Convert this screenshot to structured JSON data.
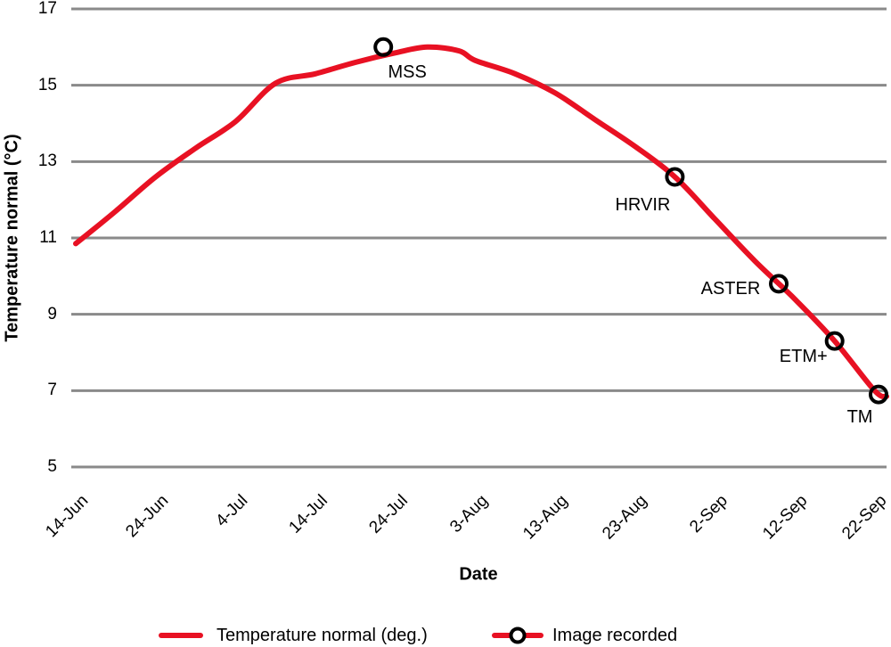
{
  "chart_data": {
    "type": "line",
    "title": "",
    "xlabel": "Date",
    "ylabel": "Temperature normal (°C)",
    "ylim": [
      5,
      17
    ],
    "yticks": [
      17,
      15,
      13,
      11,
      9,
      7,
      5
    ],
    "grid": "horizontal",
    "legend_position": "bottom",
    "x_axis_unit": "days since 14-Jun",
    "x_range_days": [
      0,
      101.5
    ],
    "xticks": [
      {
        "day": 0,
        "label": "14-Jun"
      },
      {
        "day": 10,
        "label": "24-Jun"
      },
      {
        "day": 20,
        "label": "4-Jul"
      },
      {
        "day": 30,
        "label": "14-Jul"
      },
      {
        "day": 40,
        "label": "24-Jul"
      },
      {
        "day": 50,
        "label": "3-Aug"
      },
      {
        "day": 60,
        "label": "13-Aug"
      },
      {
        "day": 70,
        "label": "23-Aug"
      },
      {
        "day": 80,
        "label": "2-Sep"
      },
      {
        "day": 90,
        "label": "12-Sep"
      },
      {
        "day": 100,
        "label": "22-Sep"
      }
    ],
    "series": [
      {
        "name": "Temperature normal (deg.)",
        "color": "#e81123",
        "points": [
          {
            "day": 0,
            "date": "14-Jun",
            "value": 10.85
          },
          {
            "day": 5,
            "date": "19-Jun",
            "value": 11.7
          },
          {
            "day": 10,
            "date": "24-Jun",
            "value": 12.6
          },
          {
            "day": 15,
            "date": "29-Jun",
            "value": 13.35
          },
          {
            "day": 20,
            "date": "4-Jul",
            "value": 14.05
          },
          {
            "day": 25,
            "date": "9-Jul",
            "value": 15.05
          },
          {
            "day": 30,
            "date": "14-Jul",
            "value": 15.3
          },
          {
            "day": 35,
            "date": "19-Jul",
            "value": 15.6
          },
          {
            "day": 40,
            "date": "24-Jul",
            "value": 15.85
          },
          {
            "day": 44,
            "date": "28-Jul",
            "value": 16.0
          },
          {
            "day": 48,
            "date": "1-Aug",
            "value": 15.9
          },
          {
            "day": 50,
            "date": "3-Aug",
            "value": 15.65
          },
          {
            "day": 55,
            "date": "8-Aug",
            "value": 15.3
          },
          {
            "day": 60,
            "date": "13-Aug",
            "value": 14.8
          },
          {
            "day": 65,
            "date": "18-Aug",
            "value": 14.1
          },
          {
            "day": 70,
            "date": "23-Aug",
            "value": 13.4
          },
          {
            "day": 75,
            "date": "28-Aug",
            "value": 12.6
          },
          {
            "day": 80,
            "date": "2-Sep",
            "value": 11.5
          },
          {
            "day": 85,
            "date": "7-Sep",
            "value": 10.4
          },
          {
            "day": 90,
            "date": "12-Sep",
            "value": 9.4
          },
          {
            "day": 95,
            "date": "17-Sep",
            "value": 8.3
          },
          {
            "day": 100,
            "date": "22-Sep",
            "value": 7.0
          },
          {
            "day": 101.5,
            "date": "23-Sep",
            "value": 6.85
          }
        ]
      }
    ],
    "markers": {
      "name": "Image recorded",
      "points": [
        {
          "label": "MSS",
          "day": 38.5,
          "date": "22-Jul",
          "value": 16.0
        },
        {
          "label": "HRVIR",
          "day": 75,
          "date": "28-Aug",
          "value": 12.6
        },
        {
          "label": "ASTER",
          "day": 88,
          "date": "10-Sep",
          "value": 9.8
        },
        {
          "label": "ETM+",
          "day": 95,
          "date": "17-Sep",
          "value": 8.3
        },
        {
          "label": "TM",
          "day": 100.5,
          "date": "22-Sep",
          "value": 6.9
        }
      ]
    }
  },
  "legend": {
    "items": [
      {
        "label": "Temperature normal (deg.)",
        "symbol": "line"
      },
      {
        "label": "Image recorded",
        "symbol": "circle-on-line"
      }
    ]
  },
  "colors": {
    "line_red": "#e81123",
    "gridline": "#8a8a8a",
    "marker_stroke": "#000000",
    "background": "#ffffff"
  }
}
